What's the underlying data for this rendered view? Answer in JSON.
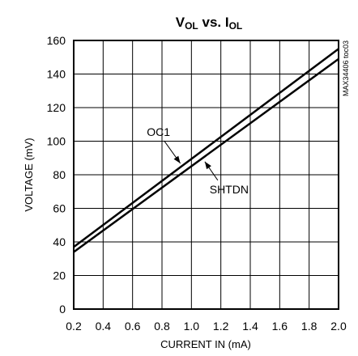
{
  "chart_data": {
    "type": "line",
    "title": {
      "main": "V",
      "sub1": "OL",
      "mid": " vs. I",
      "sub2": "OL"
    },
    "xlabel": "CURRENT IN (mA)",
    "ylabel": "VOLTAGE (mV)",
    "xlim": [
      0.2,
      2.0
    ],
    "ylim": [
      0,
      160
    ],
    "x_ticks": [
      "0.2",
      "0.4",
      "0.6",
      "0.8",
      "1.0",
      "1.2",
      "1.4",
      "1.6",
      "1.8",
      "2.0"
    ],
    "y_ticks": [
      "0",
      "20",
      "40",
      "60",
      "80",
      "100",
      "120",
      "140",
      "160"
    ],
    "grid": true,
    "series": [
      {
        "name": "OC1",
        "x": [
          0.2,
          2.0
        ],
        "y": [
          37,
          155
        ]
      },
      {
        "name": "SHTDN",
        "x": [
          0.2,
          2.0
        ],
        "y": [
          34,
          149
        ]
      }
    ],
    "annotations": [
      {
        "text": "OC1",
        "series": "OC1",
        "x": 0.93
      },
      {
        "text": "SHTDN",
        "series": "SHTDN",
        "x": 1.08
      }
    ],
    "side_label": "MAX34406 toc03"
  }
}
